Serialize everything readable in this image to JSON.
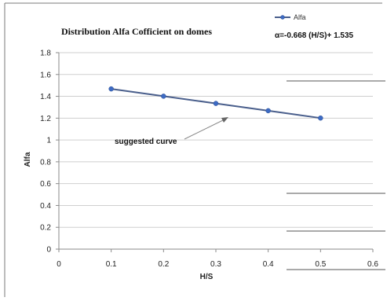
{
  "chart_data": {
    "type": "line",
    "title": "Distribution Alfa Cofficient on domes",
    "xlabel": "H/S",
    "ylabel": "Alfa",
    "x_ticks": [
      "0",
      "0.1",
      "0.2",
      "0.3",
      "0.4",
      "0.5",
      "0.6"
    ],
    "y_ticks": [
      "0",
      "0.2",
      "0.4",
      "0.6",
      "0.8",
      "1",
      "1.2",
      "1.4",
      "1.6",
      "1.8"
    ],
    "xlim": [
      0,
      0.6
    ],
    "ylim": [
      0,
      1.8
    ],
    "grid": "horizontal",
    "legend_position": "top-right",
    "series": [
      {
        "name": "Alfa",
        "x": [
          0.1,
          0.2,
          0.3,
          0.4,
          0.5
        ],
        "y": [
          1.468,
          1.401,
          1.335,
          1.268,
          1.201
        ],
        "color": "#3d6bc4"
      }
    ],
    "equation": "α=-0.668 (H/S)+ 1.535",
    "annotation": {
      "text": "suggested curve",
      "points_to": [
        0.32,
        1.22
      ]
    }
  }
}
